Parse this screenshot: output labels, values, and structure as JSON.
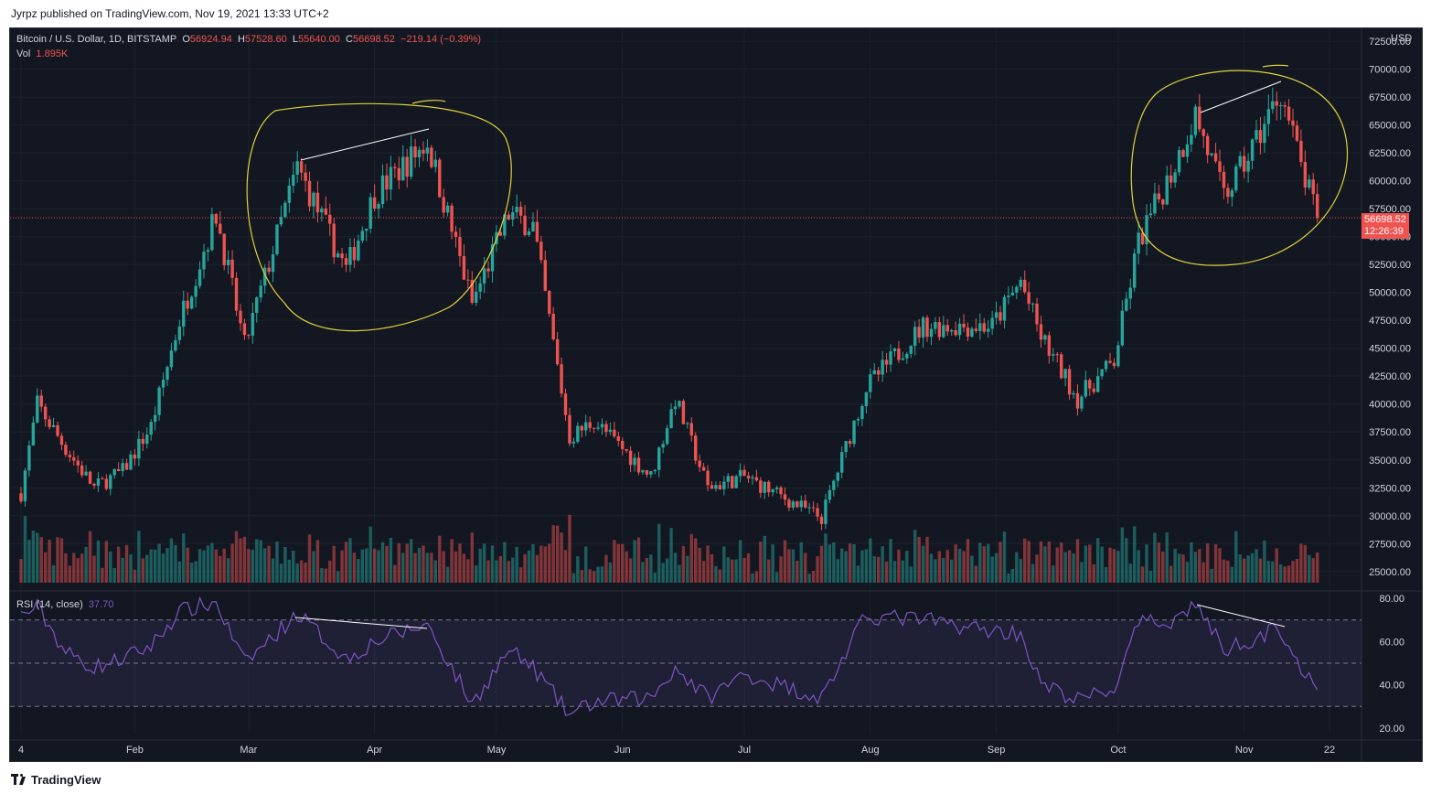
{
  "header": {
    "published_text": "Jyrpz published on TradingView.com, Nov 19, 2021 13:33 UTC+2"
  },
  "footer": {
    "brand": "TradingView"
  },
  "legend": {
    "symbol": "Bitcoin / U.S. Dollar, 1D, BITSTAMP",
    "o_label": "O",
    "o_value": "56924.94",
    "h_label": "H",
    "h_value": "57528.60",
    "l_label": "L",
    "l_value": "55640.00",
    "c_label": "C",
    "c_value": "56698.52",
    "change": "−219.14 (−0.39%)",
    "vol_label": "Vol",
    "vol_value": "1.895K",
    "rsi_label": "RSI (14, close)",
    "rsi_value": "37.70"
  },
  "price_tag": {
    "price": "56698.52",
    "countdown": "12:26:39"
  },
  "colors": {
    "background": "#131722",
    "up": "#26a69a",
    "down": "#ef5350",
    "rsi_line": "#7e57c2",
    "annotation": "#e0d23a",
    "trendline": "#ffffff"
  },
  "chart_data": {
    "type": "candlestick",
    "title": "Bitcoin / U.S. Dollar, 1D, BITSTAMP",
    "currency": "USD",
    "x_ticks": [
      "4",
      "Feb",
      "Mar",
      "Apr",
      "May",
      "Jun",
      "Jul",
      "Aug",
      "Sep",
      "Oct",
      "Nov",
      "22"
    ],
    "y_ticks": [
      25000,
      27500,
      30000,
      32500,
      35000,
      37500,
      40000,
      42500,
      45000,
      47500,
      50000,
      52500,
      55000,
      57500,
      60000,
      62500,
      65000,
      67500,
      70000,
      72500
    ],
    "ylim": [
      24000,
      73000
    ],
    "rsi_ticks": [
      20,
      40,
      60,
      80
    ],
    "rsi_ylim": [
      17,
      83
    ],
    "rsi_bands": [
      30,
      50,
      70
    ],
    "last_close": 56698.52,
    "series": [
      {
        "name": "price_close_approx",
        "x": [
          "2021-01-04",
          "2021-01-08",
          "2021-01-15",
          "2021-01-22",
          "2021-01-29",
          "2021-02-05",
          "2021-02-12",
          "2021-02-21",
          "2021-02-28",
          "2021-03-13",
          "2021-03-25",
          "2021-04-01",
          "2021-04-14",
          "2021-04-25",
          "2021-05-04",
          "2021-05-10",
          "2021-05-19",
          "2021-05-25",
          "2021-06-08",
          "2021-06-14",
          "2021-06-22",
          "2021-07-01",
          "2021-07-20",
          "2021-07-31",
          "2021-08-14",
          "2021-08-31",
          "2021-09-07",
          "2021-09-12",
          "2021-09-21",
          "2021-09-30",
          "2021-10-06",
          "2021-10-15",
          "2021-10-20",
          "2021-10-27",
          "2021-11-01",
          "2021-11-10",
          "2021-11-16",
          "2021-11-19"
        ],
        "values": [
          32000,
          40000,
          36000,
          32500,
          34000,
          38000,
          47500,
          57000,
          45200,
          61200,
          52000,
          58800,
          63500,
          49000,
          57000,
          56000,
          37000,
          38500,
          33500,
          40500,
          32500,
          33500,
          29800,
          41500,
          47000,
          47000,
          51000,
          46000,
          40500,
          43800,
          54500,
          61500,
          66000,
          58500,
          61500,
          68000,
          60000,
          56700
        ]
      },
      {
        "name": "rsi_approx",
        "x": [
          "2021-01-04",
          "2021-01-08",
          "2021-01-15",
          "2021-01-22",
          "2021-01-29",
          "2021-02-05",
          "2021-02-12",
          "2021-02-21",
          "2021-02-28",
          "2021-03-13",
          "2021-03-25",
          "2021-04-01",
          "2021-04-14",
          "2021-04-25",
          "2021-05-04",
          "2021-05-10",
          "2021-05-19",
          "2021-05-25",
          "2021-06-08",
          "2021-06-14",
          "2021-06-22",
          "2021-07-01",
          "2021-07-20",
          "2021-07-31",
          "2021-08-14",
          "2021-08-31",
          "2021-09-07",
          "2021-09-12",
          "2021-09-21",
          "2021-09-30",
          "2021-10-06",
          "2021-10-15",
          "2021-10-20",
          "2021-10-27",
          "2021-11-01",
          "2021-11-10",
          "2021-11-16",
          "2021-11-19"
        ],
        "values": [
          72,
          76,
          55,
          48,
          52,
          58,
          74,
          78,
          50,
          73,
          52,
          60,
          68,
          31,
          56,
          48,
          26,
          32,
          34,
          48,
          34,
          45,
          34,
          72,
          70,
          65,
          64,
          40,
          33,
          38,
          68,
          70,
          78,
          56,
          60,
          66,
          44,
          37.7
        ]
      }
    ]
  }
}
